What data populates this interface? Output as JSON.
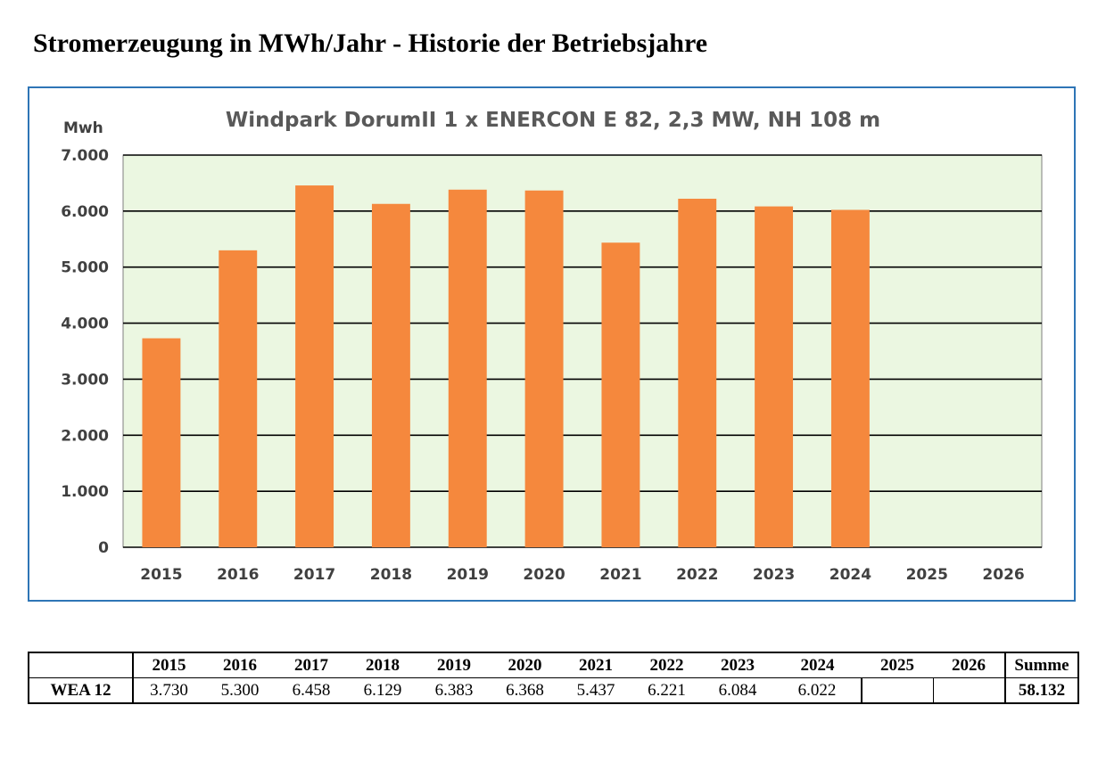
{
  "page": {
    "title": "Stromerzeugung in MWh/Jahr - Historie der Betriebsjahre"
  },
  "colors": {
    "bar": "#f5883d",
    "plot_background": "#ebf7e1",
    "frame_border": "#2e75b6",
    "gridline": "#000000"
  },
  "chart_data": {
    "type": "bar",
    "title": "Windpark DorumII  1 x ENERCON E 82, 2,3 MW, NH 108 m",
    "ylabel": "Mwh",
    "xlabel": "",
    "categories": [
      "2015",
      "2016",
      "2017",
      "2018",
      "2019",
      "2020",
      "2021",
      "2022",
      "2023",
      "2024",
      "2025",
      "2026"
    ],
    "series": [
      {
        "name": "WEA 12",
        "values": [
          3730,
          5300,
          6458,
          6129,
          6383,
          6368,
          5437,
          6221,
          6084,
          6022,
          null,
          null
        ]
      }
    ],
    "ylim": [
      0,
      7000
    ],
    "yticks": [
      0,
      1000,
      2000,
      3000,
      4000,
      5000,
      6000,
      7000
    ],
    "ytick_labels": [
      "0",
      "1.000",
      "2.000",
      "3.000",
      "4.000",
      "5.000",
      "6.000",
      "7.000"
    ],
    "grid": true,
    "legend": "none"
  },
  "table": {
    "headers": [
      "",
      "2015",
      "2016",
      "2017",
      "2018",
      "2019",
      "2020",
      "2021",
      "2022",
      "2023",
      "2024",
      "2025",
      "2026",
      "Summe"
    ],
    "rows": [
      {
        "label": "WEA 12",
        "values": [
          "3.730",
          "5.300",
          "6.458",
          "6.129",
          "6.383",
          "6.368",
          "5.437",
          "6.221",
          "6.084",
          "6.022",
          "",
          ""
        ],
        "sum": "58.132"
      }
    ]
  }
}
